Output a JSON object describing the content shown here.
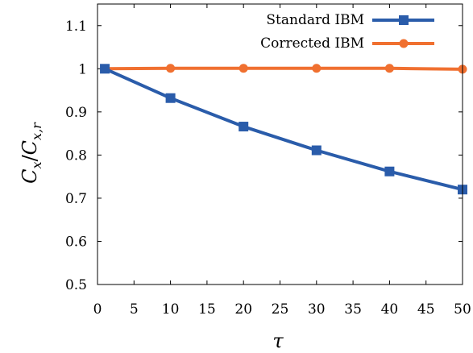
{
  "chart_data": {
    "type": "line",
    "title": "",
    "xlabel_parts": {
      "base": "τ"
    },
    "ylabel_parts": {
      "num_base": "C",
      "num_sub": "x",
      "sep": "/",
      "den_base": "C",
      "den_sub": "x,r"
    },
    "xlim": [
      0,
      50
    ],
    "ylim": [
      0.5,
      1.15
    ],
    "xticks": [
      0,
      5,
      10,
      15,
      20,
      25,
      30,
      35,
      40,
      45,
      50
    ],
    "yticks": [
      0.5,
      0.6,
      0.7,
      0.8,
      0.9,
      1,
      1.1
    ],
    "xtick_labels": [
      "0",
      "5",
      "10",
      "15",
      "20",
      "25",
      "30",
      "35",
      "40",
      "45",
      "50"
    ],
    "ytick_labels": [
      "0.5",
      "0.6",
      "0.7",
      "0.8",
      "0.9",
      "1",
      "1.1"
    ],
    "grid": false,
    "legend_position": "top-right",
    "series": [
      {
        "name": "Standard IBM",
        "color": "#2a5caa",
        "marker": "square",
        "x": [
          1,
          10,
          20,
          30,
          40,
          50
        ],
        "y": [
          1.0,
          0.932,
          0.866,
          0.811,
          0.762,
          0.72
        ]
      },
      {
        "name": "Corrected IBM",
        "color": "#f07030",
        "marker": "circle",
        "x": [
          1,
          10,
          20,
          30,
          40,
          50
        ],
        "y": [
          1.0,
          1.001,
          1.001,
          1.001,
          1.001,
          0.999
        ]
      }
    ]
  }
}
